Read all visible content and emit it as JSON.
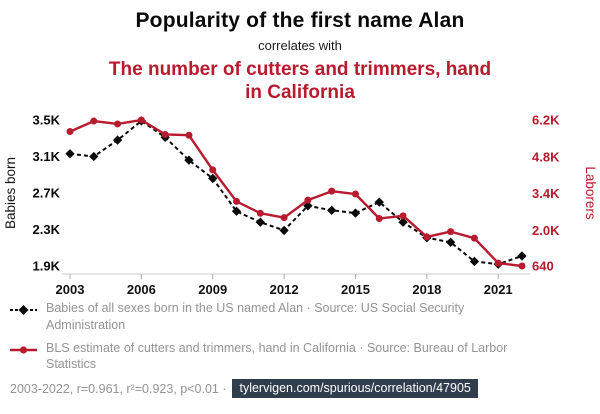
{
  "colors": {
    "accent_red": "#b81a2e",
    "badge_bg": "#2f3d4c",
    "muted_gray": "#949494",
    "series_black": "#0a0a0a"
  },
  "header": {
    "connector": "correlates with"
  },
  "chart_data": {
    "type": "line",
    "title": "Popularity of the first name Alan",
    "subtitle": "The number of cutters and trimmers, hand in California",
    "x": [
      2003,
      2004,
      2005,
      2006,
      2007,
      2008,
      2009,
      2010,
      2011,
      2012,
      2013,
      2014,
      2015,
      2016,
      2017,
      2018,
      2019,
      2020,
      2021,
      2022
    ],
    "x_ticks": [
      2003,
      2006,
      2009,
      2012,
      2015,
      2018,
      2021
    ],
    "left_axis": {
      "label": "Babies born",
      "ticks": [
        "1.9K",
        "2.3K",
        "2.7K",
        "3.1K",
        "3.5K"
      ],
      "tick_values": [
        1900,
        2300,
        2700,
        3100,
        3500
      ],
      "range": [
        1900,
        3500
      ],
      "color": "#0a0a0a"
    },
    "right_axis": {
      "label": "Laborers",
      "ticks": [
        "640",
        "2.0K",
        "3.4K",
        "4.8K",
        "6.2K"
      ],
      "tick_values": [
        640,
        2000,
        3400,
        4800,
        6200
      ],
      "range": [
        640,
        6200
      ],
      "color": "#b81a2e"
    },
    "grid": false,
    "legend_position": "below",
    "series": [
      {
        "name": "Babies of all sexes born in the US named Alan",
        "axis": "left",
        "color": "#0a0a0a",
        "marker": "diamond",
        "dash": "4 3",
        "width": 2,
        "values": [
          3130,
          3100,
          3280,
          3490,
          3310,
          3060,
          2860,
          2500,
          2380,
          2290,
          2560,
          2510,
          2480,
          2600,
          2380,
          2210,
          2160,
          1950,
          1920,
          2010
        ]
      },
      {
        "name": "BLS estimate of cutters and trimmers, hand in California",
        "axis": "right",
        "color": "#b81a2e",
        "marker": "circle",
        "dash": "",
        "width": 2.4,
        "values": [
          5760,
          6160,
          6050,
          6200,
          5650,
          5620,
          4300,
          3100,
          2650,
          2480,
          3150,
          3490,
          3380,
          2450,
          2550,
          1750,
          1950,
          1700,
          750,
          640
        ]
      }
    ]
  },
  "legend": {
    "items": [
      {
        "label": "Babies of all sexes born in the US named Alan · Source: US Social Security Administration"
      },
      {
        "label": "BLS estimate of cutters and trimmers, hand in California · Source: Bureau of Larbor Statistics"
      }
    ]
  },
  "footer": {
    "stats": "2003-2022, r=0.961, r²=0.923, p<0.01 ·",
    "url": "tylervigen.com/spurious/correlation/47905"
  }
}
